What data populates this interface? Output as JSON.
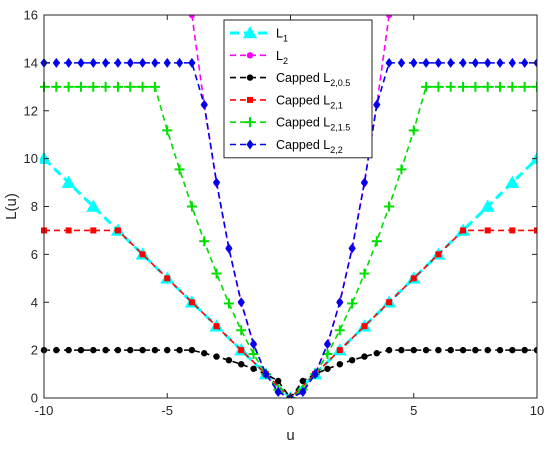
{
  "chart_data": {
    "type": "line",
    "xlabel": "u",
    "ylabel": "L(u)",
    "xlim": [
      -10,
      10
    ],
    "ylim": [
      0,
      16
    ],
    "x_ticks": [
      "-10",
      "-5",
      "0",
      "5",
      "10"
    ],
    "y_ticks": [
      "0",
      "2",
      "4",
      "6",
      "8",
      "10",
      "12",
      "14",
      "16"
    ],
    "grid": false,
    "legend_position": "top-center",
    "series": [
      {
        "name": "L",
        "sub": "1",
        "color": "#00ffff",
        "marker": "triangle",
        "linewidth": 3,
        "x": [
          -10,
          -9,
          -8,
          -7,
          -6,
          -5,
          -4,
          -3,
          -2,
          -1,
          0,
          1,
          2,
          3,
          4,
          5,
          6,
          7,
          8,
          9,
          10
        ],
        "y": [
          10,
          9,
          8,
          7,
          6,
          5,
          4,
          3,
          2,
          1,
          0,
          1,
          2,
          3,
          4,
          5,
          6,
          7,
          8,
          9,
          10
        ]
      },
      {
        "name": "L",
        "sub": "2",
        "color": "#ff00ff",
        "marker": "circle",
        "linewidth": 1.6,
        "x": [
          -4,
          -3.5,
          -3,
          -2.5,
          -2,
          -1.5,
          -1,
          -0.5,
          0,
          0.5,
          1,
          1.5,
          2,
          2.5,
          3,
          3.5,
          4
        ],
        "y": [
          16,
          12.25,
          9,
          6.25,
          4,
          2.25,
          1,
          0.25,
          0,
          0.25,
          1,
          2.25,
          4,
          6.25,
          9,
          12.25,
          16
        ]
      },
      {
        "name": "Capped L",
        "sub": "2,0.5",
        "color": "#000000",
        "marker": "circle",
        "linewidth": 1.6,
        "x": [
          -10,
          -9.5,
          -9,
          -8.5,
          -8,
          -7.5,
          -7,
          -6.5,
          -6,
          -5.5,
          -5,
          -4.5,
          -4,
          -3.5,
          -3,
          -2.5,
          -2,
          -1.5,
          -1,
          -0.5,
          0,
          0.5,
          1,
          1.5,
          2,
          2.5,
          3,
          3.5,
          4,
          4.5,
          5,
          5.5,
          6,
          6.5,
          7,
          7.5,
          8,
          8.5,
          9,
          9.5,
          10
        ],
        "y": [
          2,
          2,
          2,
          2,
          2,
          2,
          2,
          2,
          2,
          2,
          2,
          2,
          2,
          1.87,
          1.73,
          1.58,
          1.41,
          1.22,
          1,
          0.71,
          0,
          0.71,
          1,
          1.22,
          1.41,
          1.58,
          1.73,
          1.87,
          2,
          2,
          2,
          2,
          2,
          2,
          2,
          2,
          2,
          2,
          2,
          2,
          2
        ]
      },
      {
        "name": "Capped L",
        "sub": "2,1",
        "color": "#ff0000",
        "marker": "square",
        "linewidth": 1.6,
        "x": [
          -10,
          -9,
          -8,
          -7,
          -6,
          -5,
          -4,
          -3,
          -2,
          -1,
          0,
          1,
          2,
          3,
          4,
          5,
          6,
          7,
          8,
          9,
          10
        ],
        "y": [
          7,
          7,
          7,
          7,
          6,
          5,
          4,
          3,
          2,
          1,
          0,
          1,
          2,
          3,
          4,
          5,
          6,
          7,
          7,
          7,
          7
        ]
      },
      {
        "name": "Capped L",
        "sub": "2,1.5",
        "color": "#00dd00",
        "marker": "plus",
        "linewidth": 1.6,
        "x": [
          -10,
          -9.5,
          -9,
          -8.5,
          -8,
          -7.5,
          -7,
          -6.5,
          -6,
          -5.5,
          -5,
          -4.5,
          -4,
          -3.5,
          -3,
          -2.5,
          -2,
          -1.5,
          -1,
          -0.5,
          0,
          0.5,
          1,
          1.5,
          2,
          2.5,
          3,
          3.5,
          4,
          4.5,
          5,
          5.5,
          6,
          6.5,
          7,
          7.5,
          8,
          8.5,
          9,
          9.5,
          10
        ],
        "y": [
          13,
          13,
          13,
          13,
          13,
          13,
          13,
          13,
          13,
          13,
          11.18,
          9.55,
          8,
          6.55,
          5.2,
          3.95,
          2.83,
          1.84,
          1,
          0.35,
          0,
          0.35,
          1,
          1.84,
          2.83,
          3.95,
          5.2,
          6.55,
          8,
          9.55,
          11.18,
          13,
          13,
          13,
          13,
          13,
          13,
          13,
          13,
          13,
          13
        ]
      },
      {
        "name": "Capped L",
        "sub": "2,2",
        "color": "#0000ee",
        "marker": "diamond",
        "linewidth": 1.6,
        "x": [
          -10,
          -9.5,
          -9,
          -8.5,
          -8,
          -7.5,
          -7,
          -6.5,
          -6,
          -5.5,
          -5,
          -4.5,
          -4,
          -3.5,
          -3,
          -2.5,
          -2,
          -1.5,
          -1,
          -0.5,
          0,
          0.5,
          1,
          1.5,
          2,
          2.5,
          3,
          3.5,
          4,
          4.5,
          5,
          5.5,
          6,
          6.5,
          7,
          7.5,
          8,
          8.5,
          9,
          9.5,
          10
        ],
        "y": [
          14,
          14,
          14,
          14,
          14,
          14,
          14,
          14,
          14,
          14,
          14,
          14,
          14,
          12.25,
          9,
          6.25,
          4,
          2.25,
          1,
          0.25,
          0,
          0.25,
          1,
          2.25,
          4,
          6.25,
          9,
          12.25,
          14,
          14,
          14,
          14,
          14,
          14,
          14,
          14,
          14,
          14,
          14,
          14,
          14
        ]
      }
    ]
  }
}
